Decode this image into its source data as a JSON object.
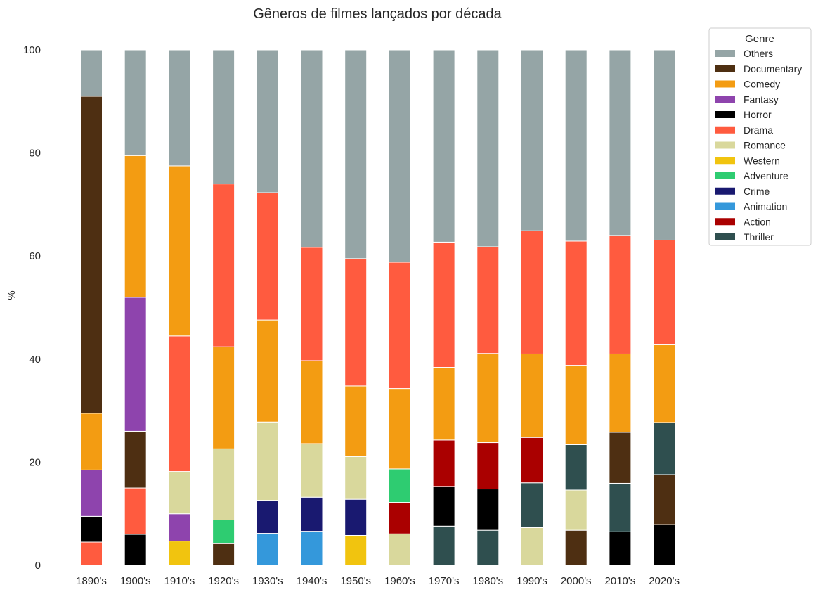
{
  "chart_data": {
    "type": "bar",
    "stacked": true,
    "title": "Gêneros de filmes lançados por década",
    "ylabel": "%",
    "xlabel": "",
    "ylim": [
      0,
      100
    ],
    "yticks": [
      0,
      20,
      40,
      60,
      80,
      100
    ],
    "grid": false,
    "legend_title": "Genre",
    "legend_position": "outside-top-right",
    "categories": [
      "1890's",
      "1900's",
      "1910's",
      "1920's",
      "1930's",
      "1940's",
      "1950's",
      "1960's",
      "1970's",
      "1980's",
      "1990's",
      "2000's",
      "2010's",
      "2020's"
    ],
    "bars": [
      [
        {
          "g": "Drama",
          "v": 4.5
        },
        {
          "g": "Horror",
          "v": 5.0
        },
        {
          "g": "Fantasy",
          "v": 9.0
        },
        {
          "g": "Comedy",
          "v": 11.0
        },
        {
          "g": "Documentary",
          "v": 61.5
        },
        {
          "g": "Others",
          "v": 9.0
        }
      ],
      [
        {
          "g": "Horror",
          "v": 6.0
        },
        {
          "g": "Drama",
          "v": 9.0
        },
        {
          "g": "Documentary",
          "v": 11.0
        },
        {
          "g": "Fantasy",
          "v": 26.0
        },
        {
          "g": "Comedy",
          "v": 27.5
        },
        {
          "g": "Others",
          "v": 20.5
        }
      ],
      [
        {
          "g": "Western",
          "v": 4.7
        },
        {
          "g": "Fantasy",
          "v": 5.3
        },
        {
          "g": "Romance",
          "v": 8.2
        },
        {
          "g": "Drama",
          "v": 26.3
        },
        {
          "g": "Comedy",
          "v": 33.0
        },
        {
          "g": "Others",
          "v": 22.5
        }
      ],
      [
        {
          "g": "Documentary",
          "v": 4.2
        },
        {
          "g": "Adventure",
          "v": 4.6
        },
        {
          "g": "Romance",
          "v": 13.8
        },
        {
          "g": "Comedy",
          "v": 19.8
        },
        {
          "g": "Drama",
          "v": 31.6
        },
        {
          "g": "Others",
          "v": 26.0
        }
      ],
      [
        {
          "g": "Animation",
          "v": 6.2
        },
        {
          "g": "Crime",
          "v": 6.4
        },
        {
          "g": "Romance",
          "v": 15.2
        },
        {
          "g": "Comedy",
          "v": 19.8
        },
        {
          "g": "Drama",
          "v": 24.7
        },
        {
          "g": "Others",
          "v": 27.7
        }
      ],
      [
        {
          "g": "Animation",
          "v": 6.6
        },
        {
          "g": "Crime",
          "v": 6.6
        },
        {
          "g": "Romance",
          "v": 10.4
        },
        {
          "g": "Comedy",
          "v": 16.1
        },
        {
          "g": "Drama",
          "v": 22.0
        },
        {
          "g": "Others",
          "v": 38.3
        }
      ],
      [
        {
          "g": "Western",
          "v": 5.8
        },
        {
          "g": "Crime",
          "v": 7.0
        },
        {
          "g": "Romance",
          "v": 8.3
        },
        {
          "g": "Comedy",
          "v": 13.7
        },
        {
          "g": "Drama",
          "v": 24.7
        },
        {
          "g": "Others",
          "v": 40.5
        }
      ],
      [
        {
          "g": "Romance",
          "v": 6.1
        },
        {
          "g": "Action",
          "v": 6.1
        },
        {
          "g": "Adventure",
          "v": 6.5
        },
        {
          "g": "Comedy",
          "v": 15.6
        },
        {
          "g": "Drama",
          "v": 24.5
        },
        {
          "g": "Others",
          "v": 41.2
        }
      ],
      [
        {
          "g": "Thriller",
          "v": 7.6
        },
        {
          "g": "Horror",
          "v": 7.7
        },
        {
          "g": "Action",
          "v": 9.0
        },
        {
          "g": "Comedy",
          "v": 14.1
        },
        {
          "g": "Drama",
          "v": 24.3
        },
        {
          "g": "Others",
          "v": 37.3
        }
      ],
      [
        {
          "g": "Thriller",
          "v": 6.8
        },
        {
          "g": "Horror",
          "v": 8.0
        },
        {
          "g": "Action",
          "v": 9.0
        },
        {
          "g": "Comedy",
          "v": 17.3
        },
        {
          "g": "Drama",
          "v": 20.7
        },
        {
          "g": "Others",
          "v": 38.2
        }
      ],
      [
        {
          "g": "Romance",
          "v": 7.3
        },
        {
          "g": "Thriller",
          "v": 8.7
        },
        {
          "g": "Action",
          "v": 8.8
        },
        {
          "g": "Comedy",
          "v": 16.2
        },
        {
          "g": "Drama",
          "v": 23.9
        },
        {
          "g": "Others",
          "v": 35.1
        }
      ],
      [
        {
          "g": "Documentary",
          "v": 6.8
        },
        {
          "g": "Romance",
          "v": 7.8
        },
        {
          "g": "Thriller",
          "v": 8.8
        },
        {
          "g": "Comedy",
          "v": 15.4
        },
        {
          "g": "Drama",
          "v": 24.1
        },
        {
          "g": "Others",
          "v": 37.1
        }
      ],
      [
        {
          "g": "Horror",
          "v": 6.5
        },
        {
          "g": "Thriller",
          "v": 9.4
        },
        {
          "g": "Documentary",
          "v": 9.9
        },
        {
          "g": "Comedy",
          "v": 15.2
        },
        {
          "g": "Drama",
          "v": 23.0
        },
        {
          "g": "Others",
          "v": 36.0
        }
      ],
      [
        {
          "g": "Horror",
          "v": 7.9
        },
        {
          "g": "Documentary",
          "v": 9.7
        },
        {
          "g": "Thriller",
          "v": 10.1
        },
        {
          "g": "Comedy",
          "v": 15.2
        },
        {
          "g": "Drama",
          "v": 20.2
        },
        {
          "g": "Others",
          "v": 36.9
        }
      ]
    ],
    "legend": [
      {
        "name": "Others",
        "color": "#95a5a6"
      },
      {
        "name": "Documentary",
        "color": "#4e2f12"
      },
      {
        "name": "Comedy",
        "color": "#f39c12"
      },
      {
        "name": "Fantasy",
        "color": "#8e44ad"
      },
      {
        "name": "Horror",
        "color": "#000000"
      },
      {
        "name": "Drama",
        "color": "#ff5b3f"
      },
      {
        "name": "Romance",
        "color": "#d9d89c"
      },
      {
        "name": "Western",
        "color": "#f1c40f"
      },
      {
        "name": "Adventure",
        "color": "#2ecc71"
      },
      {
        "name": "Crime",
        "color": "#191970"
      },
      {
        "name": "Animation",
        "color": "#3498db"
      },
      {
        "name": "Action",
        "color": "#aa0000"
      },
      {
        "name": "Thriller",
        "color": "#2f4f4f"
      }
    ]
  }
}
